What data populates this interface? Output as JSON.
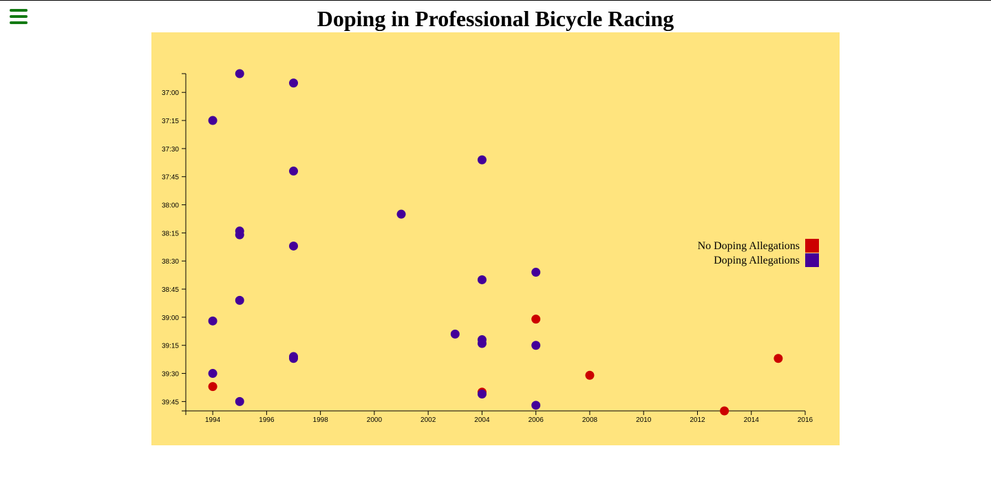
{
  "header": {
    "title": "Doping in Professional Bicycle Racing",
    "menu_icon": "hamburger-menu-icon"
  },
  "colors": {
    "background": "#ffe47e",
    "no_doping": "#cc0000",
    "doping": "#440099",
    "menu": "#137a13"
  },
  "chart_data": {
    "type": "scatter",
    "title": "Doping in Professional Bicycle Racing",
    "xlabel": "",
    "ylabel": "",
    "x_ticks": [
      "1994",
      "1996",
      "1998",
      "2000",
      "2002",
      "2004",
      "2006",
      "2008",
      "2010",
      "2012",
      "2014",
      "2016"
    ],
    "y_ticks": [
      "37:00",
      "37:15",
      "37:30",
      "37:45",
      "38:00",
      "38:15",
      "38:30",
      "38:45",
      "39:00",
      "39:15",
      "39:30",
      "39:45"
    ],
    "xlim": [
      1993,
      2016
    ],
    "ylim_seconds": [
      2210,
      2390
    ],
    "y_inverted": true,
    "legend": {
      "placement": "right",
      "items": [
        {
          "label": "No Doping Allegations",
          "color": "#cc0000"
        },
        {
          "label": "Doping Allegations",
          "color": "#440099"
        }
      ]
    },
    "series": [
      {
        "name": "No Doping Allegations",
        "color": "#cc0000",
        "points": [
          {
            "x": 2006,
            "y": "39:01"
          },
          {
            "x": 2015,
            "y": "39:22"
          },
          {
            "x": 2008,
            "y": "39:31"
          },
          {
            "x": 1994,
            "y": "39:37"
          },
          {
            "x": 2004,
            "y": "39:40"
          },
          {
            "x": 2013,
            "y": "39:50"
          }
        ]
      },
      {
        "name": "Doping Allegations",
        "color": "#440099",
        "points": [
          {
            "x": 1995,
            "y": "36:50"
          },
          {
            "x": 1997,
            "y": "36:55"
          },
          {
            "x": 1994,
            "y": "37:15"
          },
          {
            "x": 2004,
            "y": "37:36"
          },
          {
            "x": 1997,
            "y": "37:42"
          },
          {
            "x": 2001,
            "y": "38:05"
          },
          {
            "x": 1995,
            "y": "38:14"
          },
          {
            "x": 1995,
            "y": "38:16"
          },
          {
            "x": 1997,
            "y": "38:22"
          },
          {
            "x": 2006,
            "y": "38:36"
          },
          {
            "x": 2004,
            "y": "38:40"
          },
          {
            "x": 1995,
            "y": "38:51"
          },
          {
            "x": 1994,
            "y": "39:02"
          },
          {
            "x": 2003,
            "y": "39:09"
          },
          {
            "x": 2004,
            "y": "39:12"
          },
          {
            "x": 2004,
            "y": "39:14"
          },
          {
            "x": 2006,
            "y": "39:15"
          },
          {
            "x": 1997,
            "y": "39:21"
          },
          {
            "x": 1997,
            "y": "39:22"
          },
          {
            "x": 1994,
            "y": "39:30"
          },
          {
            "x": 2004,
            "y": "39:41"
          },
          {
            "x": 1995,
            "y": "39:45"
          },
          {
            "x": 2006,
            "y": "39:47"
          }
        ]
      }
    ]
  }
}
